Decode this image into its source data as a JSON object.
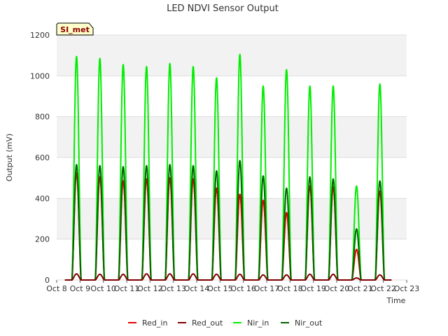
{
  "chart_data": {
    "type": "line",
    "title": "LED NDVI Sensor Output",
    "xlabel": "Time",
    "ylabel": "Output (mV)",
    "site_badge": "SI_met",
    "xlim": [
      8,
      23
    ],
    "ylim": [
      0,
      1200
    ],
    "x_ticks": [
      8,
      9,
      10,
      11,
      12,
      13,
      14,
      15,
      16,
      17,
      18,
      19,
      20,
      21,
      22,
      23
    ],
    "x_tick_labels": [
      "Oct 8",
      "Oct 9",
      "Oct 10",
      "Oct 11",
      "Oct 12",
      "Oct 13",
      "Oct 14",
      "Oct 15",
      "Oct 16",
      "Oct 17",
      "Oct 18",
      "Oct 19",
      "Oct 20",
      "Oct 21",
      "Oct 22",
      "Oct 23"
    ],
    "y_ticks": [
      0,
      200,
      400,
      600,
      800,
      1000,
      1200
    ],
    "grid": true,
    "legend_position": "bottom",
    "days": [
      8.85,
      9.85,
      10.85,
      11.85,
      12.85,
      13.85,
      14.85,
      15.85,
      16.85,
      17.85,
      18.85,
      19.85,
      20.85,
      21.85
    ],
    "x_start": 8.35,
    "x_end": 22.35,
    "series": [
      {
        "name": "Red_in",
        "color": "#e60000",
        "daily_peaks": [
          525,
          505,
          485,
          495,
          500,
          495,
          450,
          420,
          390,
          330,
          460,
          455,
          150,
          435
        ]
      },
      {
        "name": "Red_out",
        "color": "#800000",
        "daily_peaks": [
          30,
          28,
          28,
          30,
          30,
          30,
          28,
          28,
          25,
          25,
          28,
          28,
          10,
          25
        ]
      },
      {
        "name": "Nir_in",
        "color": "#00ee00",
        "daily_peaks": [
          1095,
          1085,
          1055,
          1045,
          1060,
          1045,
          990,
          1105,
          950,
          1030,
          950,
          950,
          460,
          960
        ]
      },
      {
        "name": "Nir_out",
        "color": "#006400",
        "daily_peaks": [
          565,
          560,
          555,
          560,
          565,
          560,
          535,
          585,
          510,
          450,
          505,
          495,
          250,
          485
        ]
      }
    ]
  }
}
